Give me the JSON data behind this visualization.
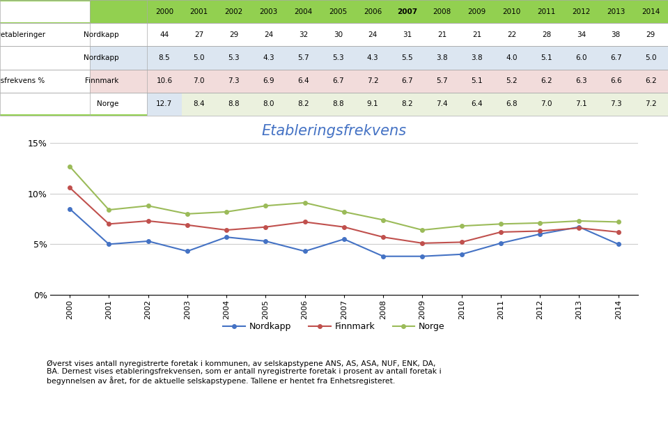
{
  "years": [
    2000,
    2001,
    2002,
    2003,
    2004,
    2005,
    2006,
    2007,
    2008,
    2009,
    2010,
    2011,
    2012,
    2013,
    2014
  ],
  "nyetableringer_nordkapp": [
    44,
    27,
    29,
    24,
    32,
    30,
    24,
    31,
    21,
    21,
    22,
    28,
    34,
    38,
    29
  ],
  "nordkapp": [
    8.5,
    5.0,
    5.3,
    4.3,
    5.7,
    5.3,
    4.3,
    5.5,
    3.8,
    3.8,
    4.0,
    5.1,
    6.0,
    6.7,
    5.0
  ],
  "finnmark": [
    10.6,
    7.0,
    7.3,
    6.9,
    6.4,
    6.7,
    7.2,
    6.7,
    5.7,
    5.1,
    5.2,
    6.2,
    6.3,
    6.6,
    6.2
  ],
  "norge": [
    12.7,
    8.4,
    8.8,
    8.0,
    8.2,
    8.8,
    9.1,
    8.2,
    7.4,
    6.4,
    6.8,
    7.0,
    7.1,
    7.3,
    7.2
  ],
  "chart_title": "Etableringsfrekvens",
  "title_color": "#4472C4",
  "nordkapp_color": "#4472C4",
  "finnmark_color": "#C0504D",
  "norge_color": "#9BBB59",
  "highlight_col": 7,
  "table_header_bg": "#92D050",
  "table_header_border": "#7AAD3A",
  "highlight_row_nordkapp": "#DCE6F1",
  "highlight_row_finnmark": "#F2DCDB",
  "highlight_row_norge": "#EBF1DE",
  "border_color": "#AAAAAA",
  "ymin": 0,
  "ymax": 0.15,
  "yticks": [
    0.0,
    0.05,
    0.1,
    0.15
  ],
  "ytick_labels": [
    "0%",
    "5%",
    "10%",
    "15%"
  ],
  "footnote_line1": "Øverst vises antall nyregistrerte foretak i kommunen, av selskapstypene ANS, AS, ASA, NUF, ENK, DA,",
  "footnote_line2": "BA. Dernest vises etableringsfrekvensen, som er antall nyregistrerte foretak i prosent av antall foretak i",
  "footnote_line3": "begynnelsen av året, for de aktuelle selskapstypene. Tallene er hentet fra Enhetsregisteret.",
  "legend_entries": [
    "Nordkapp",
    "Finnmark",
    "Norge"
  ]
}
